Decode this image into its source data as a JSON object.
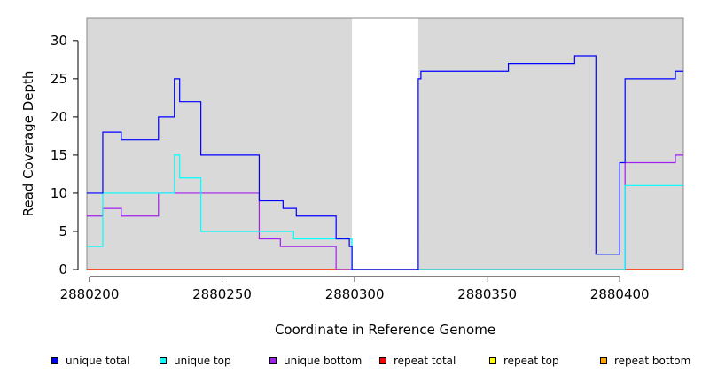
{
  "chart_data": {
    "type": "line",
    "xlabel": "Coordinate in Reference Genome",
    "ylabel": "Read Coverage Depth",
    "xlim": [
      2880199,
      2880424
    ],
    "ylim": [
      0,
      33
    ],
    "x_ticks": [
      2880200,
      2880250,
      2880300,
      2880350,
      2880400
    ],
    "y_ticks": [
      0,
      5,
      10,
      15,
      20,
      25,
      30
    ],
    "shaded_regions": [
      {
        "from": 2880199,
        "to": 2880299
      },
      {
        "from": 2880324,
        "to": 2880424
      }
    ],
    "shade_color": "#d9d9d9",
    "series": [
      {
        "name": "unique total",
        "color": "#0000ff",
        "x": [
          2880199,
          2880205,
          2880212,
          2880226,
          2880232,
          2880234,
          2880242,
          2880264,
          2880273,
          2880278,
          2880293,
          2880298,
          2880299,
          2880324,
          2880325,
          2880358,
          2880383,
          2880391,
          2880400,
          2880402,
          2880421,
          2880424
        ],
        "y": [
          10,
          18,
          17,
          20,
          25,
          22,
          15,
          9,
          8,
          7,
          4,
          3,
          0,
          25,
          26,
          27,
          28,
          2,
          14,
          25,
          26,
          26
        ]
      },
      {
        "name": "unique top",
        "color": "#00ffff",
        "x": [
          2880199,
          2880205,
          2880232,
          2880234,
          2880242,
          2880277,
          2880293,
          2880299,
          2880402,
          2880424
        ],
        "y": [
          3,
          10,
          15,
          12,
          5,
          4,
          4,
          0,
          11,
          11
        ]
      },
      {
        "name": "unique bottom",
        "color": "#a020f0",
        "x": [
          2880199,
          2880205,
          2880212,
          2880226,
          2880264,
          2880272,
          2880293,
          2880402,
          2880421,
          2880424
        ],
        "y": [
          7,
          8,
          7,
          10,
          4,
          3,
          0,
          14,
          15,
          15
        ]
      },
      {
        "name": "repeat total",
        "color": "#ff0000",
        "x": [
          2880199,
          2880424
        ],
        "y": [
          0,
          0
        ]
      },
      {
        "name": "repeat top",
        "color": "#ffff00",
        "x": [
          2880199,
          2880424
        ],
        "y": [
          0,
          0
        ]
      },
      {
        "name": "repeat bottom",
        "color": "#ffa500",
        "x": [
          2880199,
          2880424
        ],
        "y": [
          0,
          0
        ]
      }
    ]
  },
  "legend": {
    "items": [
      {
        "label": "unique total",
        "color": "#0000ff"
      },
      {
        "label": "unique top",
        "color": "#00ffff"
      },
      {
        "label": "unique bottom",
        "color": "#a020f0"
      },
      {
        "label": "repeat total",
        "color": "#ff0000"
      },
      {
        "label": "repeat top",
        "color": "#ffff00"
      },
      {
        "label": "repeat bottom",
        "color": "#ffa500"
      }
    ]
  }
}
